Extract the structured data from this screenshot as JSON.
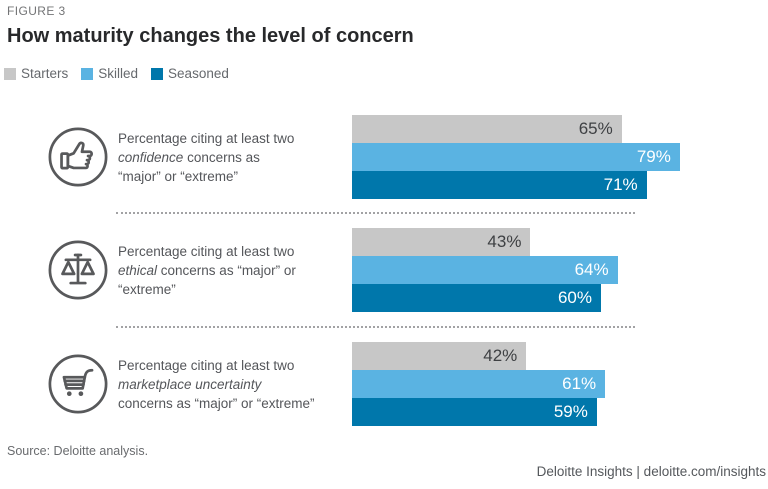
{
  "header": {
    "figure_label": "FIGURE 3",
    "title": "How maturity changes the level of concern"
  },
  "legend": [
    {
      "label": "Starters",
      "color": "#c7c7c7"
    },
    {
      "label": "Skilled",
      "color": "#5ab3e2"
    },
    {
      "label": "Seasoned",
      "color": "#0077ab"
    }
  ],
  "colors": {
    "bar_label_on_gray": "#3e4043",
    "bar_label_on_blue": "#ffffff",
    "icon_stroke": "#58595b",
    "title_text": "#28292b",
    "body_text": "#54565a"
  },
  "chart_data": {
    "type": "bar",
    "orientation": "horizontal",
    "title": "How maturity changes the level of concern",
    "xlim": [
      0,
      100
    ],
    "unit": "%",
    "grid": false,
    "legend_position": "top-left",
    "series_names": [
      "Starters",
      "Skilled",
      "Seasoned"
    ],
    "groups": [
      {
        "icon": "thumbs-up-icon",
        "desc_before": "Percentage citing at least two\n",
        "desc_italic": "confidence",
        "desc_after": " concerns as\n“major” or “extreme”",
        "values": [
          65,
          79,
          71
        ],
        "labels": [
          "65%",
          "79%",
          "71%"
        ]
      },
      {
        "icon": "scales-icon",
        "desc_before": "Percentage citing at least two\n",
        "desc_italic": "ethical",
        "desc_after": " concerns as “major” or\n“extreme”",
        "values": [
          43,
          64,
          60
        ],
        "labels": [
          "43%",
          "64%",
          "60%"
        ]
      },
      {
        "icon": "cart-icon",
        "desc_before": "Percentage citing at least two\n",
        "desc_italic": "marketplace uncertainty",
        "desc_after": "\nconcerns as “major” or “extreme”",
        "values": [
          42,
          61,
          59
        ],
        "labels": [
          "42%",
          "61%",
          "59%"
        ]
      }
    ]
  },
  "footer": {
    "source": "Source: Deloitte analysis.",
    "credit": "Deloitte Insights | deloitte.com/insights"
  }
}
